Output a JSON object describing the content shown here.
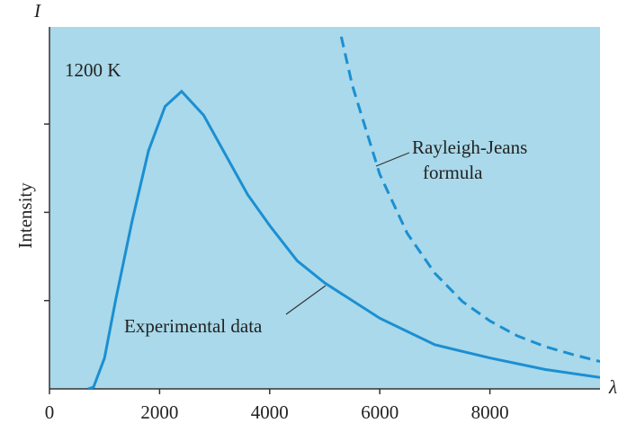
{
  "chart_data": {
    "type": "line",
    "y_axis_symbol": "I",
    "x_axis_symbol": "λ",
    "ylabel": "Intensity",
    "annotations": [
      "1200 K",
      "Rayleigh-Jeans",
      "formula",
      "Experimental data"
    ],
    "background": "#a9d9ea",
    "xlim": [
      0,
      10000
    ],
    "xticks": [
      0,
      2000,
      4000,
      6000,
      8000
    ],
    "ylim": [
      0,
      4.1
    ],
    "yticks": [
      1,
      2,
      3
    ],
    "series": [
      {
        "name": "Experimental data",
        "color": "#1b8fd2",
        "dashed": false,
        "x": [
          700,
          800,
          1000,
          1200,
          1500,
          1800,
          2100,
          2400,
          2800,
          3200,
          3600,
          4000,
          4500,
          5000,
          6000,
          7000,
          8000,
          9000,
          10000
        ],
        "values": [
          0,
          0.02,
          0.35,
          1.0,
          1.9,
          2.7,
          3.2,
          3.37,
          3.1,
          2.65,
          2.2,
          1.85,
          1.45,
          1.2,
          0.8,
          0.5,
          0.35,
          0.22,
          0.13
        ]
      },
      {
        "name": "Rayleigh-Jeans formula",
        "color": "#1b8fd2",
        "dashed": true,
        "x": [
          5300,
          5500,
          6000,
          6500,
          7000,
          7500,
          8000,
          8500,
          9000,
          9500,
          10000
        ],
        "values": [
          3.99,
          3.44,
          2.43,
          1.76,
          1.31,
          0.99,
          0.77,
          0.6,
          0.48,
          0.39,
          0.31
        ]
      }
    ]
  }
}
